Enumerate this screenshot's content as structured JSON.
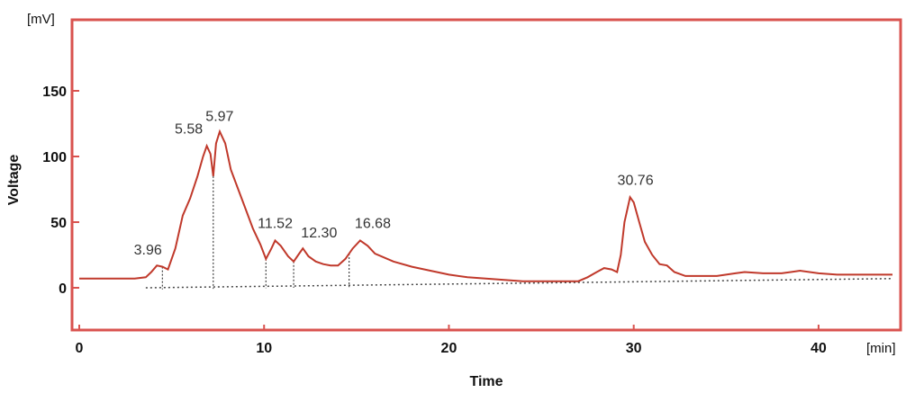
{
  "chart_data": {
    "type": "line",
    "xlabel": "Time",
    "ylabel": "Voltage",
    "x_unit": "[min]",
    "y_unit": "[mV]",
    "xlim": [
      0,
      44
    ],
    "ylim": [
      -25,
      205
    ],
    "x_ticks": [
      "0",
      "10",
      "20",
      "30",
      "40"
    ],
    "y_ticks": [
      "0",
      "50",
      "100",
      "150"
    ],
    "grid": false,
    "colors": {
      "signal": "#c0392b",
      "frame": "#d9534f",
      "baseline": "#444444"
    },
    "peaks": [
      {
        "label": "3.96",
        "x": 4.2,
        "y": 17
      },
      {
        "label": "5.58",
        "x": 6.9,
        "y": 108
      },
      {
        "label": "5.97",
        "x": 7.4,
        "y": 119
      },
      {
        "label": "11.52",
        "x": 10.6,
        "y": 36
      },
      {
        "label": "12.30",
        "x": 12.1,
        "y": 30
      },
      {
        "label": "16.68",
        "x": 15.2,
        "y": 36
      },
      {
        "label": "30.76",
        "x": 29.8,
        "y": 69
      }
    ],
    "series": [
      {
        "x": [
          0,
          3.0,
          3.6,
          3.9,
          4.2,
          4.5,
          4.8,
          5.2,
          5.6,
          6.0,
          6.4,
          6.7,
          6.9,
          7.1,
          7.25,
          7.4,
          7.6,
          7.9,
          8.2,
          8.6,
          9.0,
          9.4,
          9.8,
          10.1,
          10.4,
          10.6,
          10.9,
          11.3,
          11.6,
          11.9,
          12.1,
          12.4,
          12.8,
          13.2,
          13.6,
          14.0,
          14.4,
          14.8,
          15.2,
          15.6,
          16.0,
          17.0,
          18.0,
          19.0,
          20.0,
          21.0,
          22.0,
          23.0,
          24.0,
          25.0,
          26.0,
          27.0,
          27.5,
          28.0,
          28.4,
          28.8,
          29.1,
          29.3,
          29.5,
          29.8,
          30.0,
          30.3,
          30.6,
          31.0,
          31.4,
          31.8,
          32.2,
          32.8,
          33.5,
          34.5,
          35.0,
          35.5,
          36.0,
          37.0,
          38.0,
          38.5,
          39.0,
          40.0,
          41.0,
          42.0,
          43.0,
          44.0
        ],
        "y": [
          7,
          7,
          8,
          12,
          17,
          16,
          14,
          30,
          55,
          68,
          85,
          100,
          108,
          102,
          85,
          110,
          119,
          110,
          90,
          75,
          60,
          45,
          33,
          22,
          30,
          36,
          32,
          24,
          20,
          26,
          30,
          24,
          20,
          18,
          17,
          17,
          22,
          30,
          36,
          32,
          26,
          20,
          16,
          13,
          10,
          8,
          7,
          6,
          5,
          5,
          5,
          5,
          8,
          12,
          15,
          14,
          12,
          25,
          50,
          69,
          65,
          50,
          35,
          25,
          18,
          17,
          12,
          9,
          9,
          9,
          10,
          11,
          12,
          11,
          11,
          12,
          13,
          11,
          10,
          10,
          10,
          10
        ]
      }
    ]
  }
}
